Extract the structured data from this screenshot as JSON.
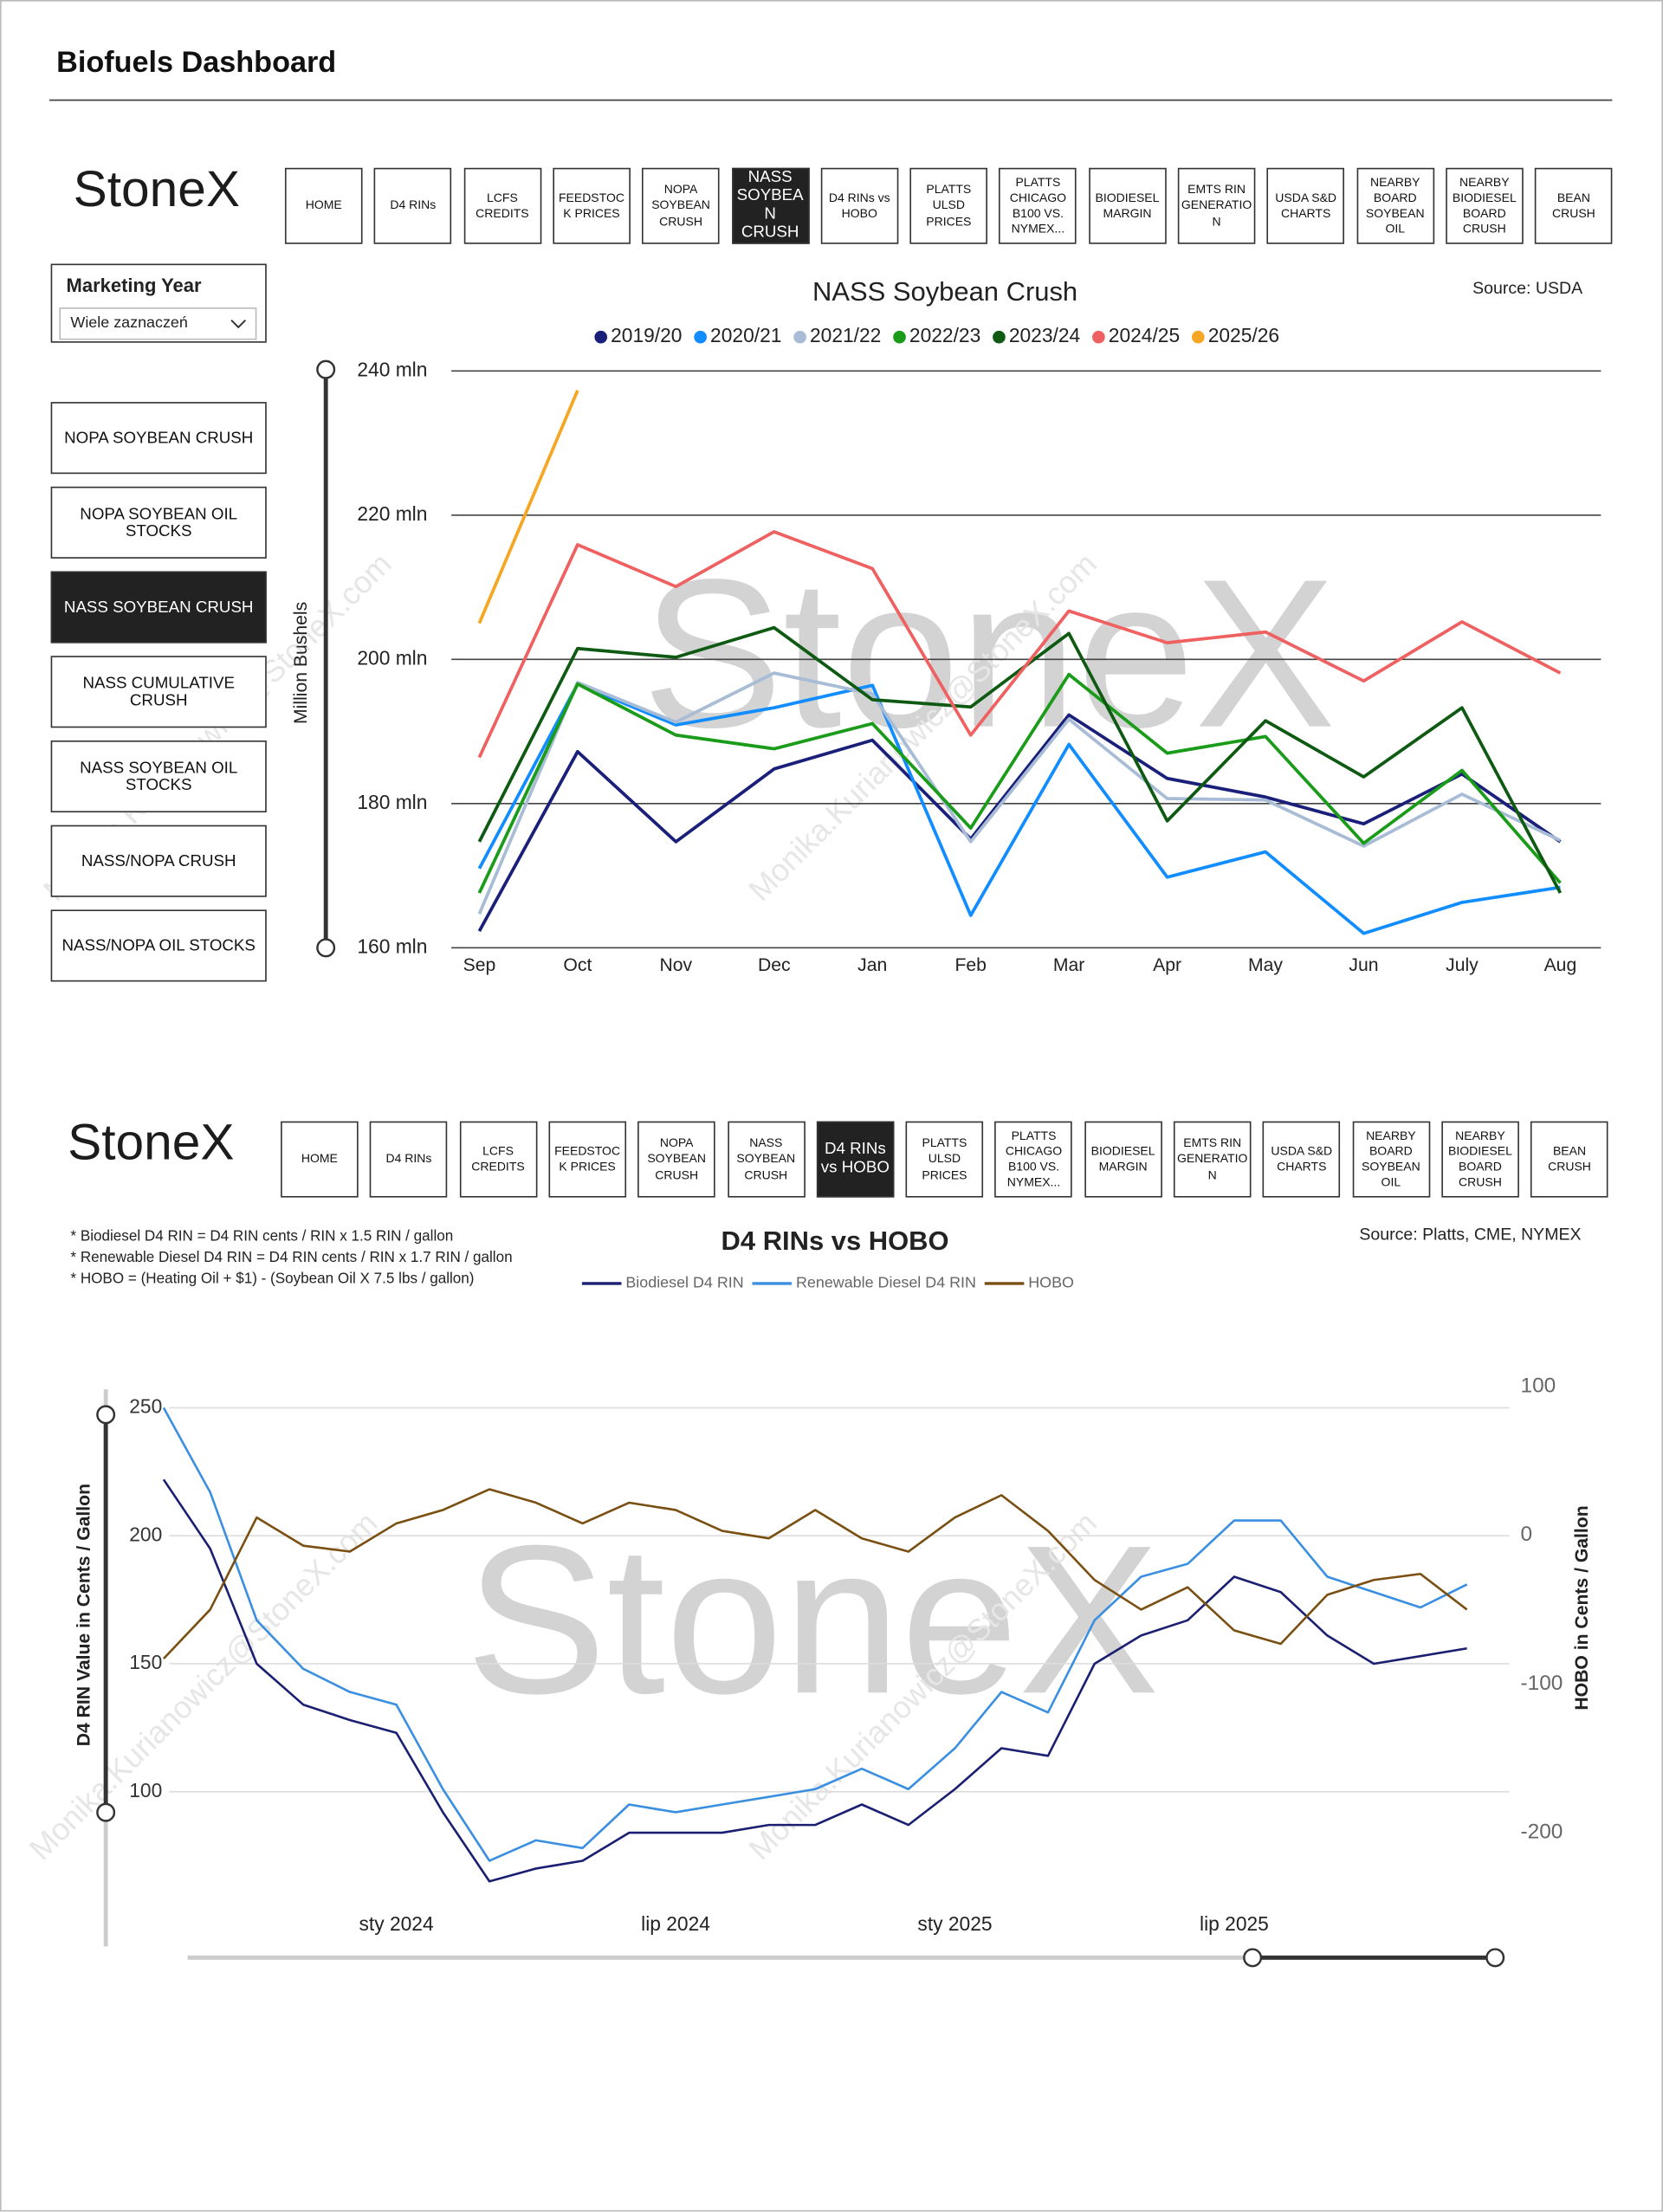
{
  "header": {
    "title": "Biofuels Dashboard"
  },
  "brand": "StoneX",
  "watermark": "Monika.Kurianowicz@StoneX.com",
  "nav": {
    "buttons": [
      "HOME",
      "D4 RINs",
      "LCFS CREDITS",
      "FEEDSTOCK PRICES",
      "NOPA SOYBEAN CRUSH",
      "NASS SOYBEAN CRUSH",
      "D4 RINs vs HOBO",
      "PLATTS ULSD PRICES",
      "PLATTS CHICAGO B100 VS. NYMEX...",
      "BIODIESEL MARGIN",
      "EMTS RIN GENERATION",
      "USDA S&D CHARTS",
      "NEARBY BOARD SOYBEAN OIL",
      "NEARBY BIODIESEL BOARD CRUSH",
      "BEAN CRUSH"
    ],
    "selected": [
      5,
      6
    ]
  },
  "slicer": {
    "title": "Marketing Year",
    "value": "Wiele zaznaczeń"
  },
  "side_menu": {
    "buttons": [
      "NOPA SOYBEAN CRUSH",
      "NOPA SOYBEAN OIL STOCKS",
      "NASS SOYBEAN CRUSH",
      "NASS CUMULATIVE CRUSH",
      "NASS SOYBEAN OIL STOCKS",
      "NASS/NOPA CRUSH",
      "NASS/NOPA OIL STOCKS"
    ],
    "selected": 2
  },
  "chart_data": [
    {
      "type": "line",
      "title": "NASS Soybean Crush",
      "source": "Source: USDA",
      "ylabel": "Million Bushels",
      "legend": "top",
      "grid": true,
      "categories": [
        "Sep",
        "Oct",
        "Nov",
        "Dec",
        "Jan",
        "Feb",
        "Mar",
        "Apr",
        "May",
        "Jun",
        "July",
        "Aug"
      ],
      "ylim": [
        160,
        240
      ],
      "yticks": [
        {
          "value": 160,
          "label": "160 mln"
        },
        {
          "value": 180,
          "label": "180 mln"
        },
        {
          "value": 200,
          "label": "200 mln"
        },
        {
          "value": 220,
          "label": "220 mln"
        },
        {
          "value": 240,
          "label": "240 mln"
        }
      ],
      "series": [
        {
          "name": "2019/20",
          "color": "#1a1f7a",
          "values": [
            162.3,
            187.2,
            174.7,
            184.8,
            188.8,
            175.1,
            192.3,
            183.5,
            180.9,
            177.2,
            184.1,
            174.7
          ]
        },
        {
          "name": "2020/21",
          "color": "#118dff",
          "values": [
            171.0,
            196.6,
            190.9,
            193.3,
            196.4,
            164.5,
            188.2,
            169.8,
            173.3,
            162.0,
            166.3,
            168.4
          ]
        },
        {
          "name": "2021/22",
          "color": "#a9bcd6",
          "values": [
            164.7,
            196.8,
            191.3,
            198.1,
            195.2,
            174.7,
            191.7,
            180.7,
            180.5,
            174.1,
            181.3,
            174.9
          ]
        },
        {
          "name": "2022/23",
          "color": "#1a9c1a",
          "values": [
            167.6,
            196.6,
            189.5,
            187.6,
            191.1,
            176.6,
            197.9,
            187.0,
            189.3,
            174.5,
            184.6,
            169.0
          ]
        },
        {
          "name": "2023/24",
          "color": "#0f5a13",
          "values": [
            174.7,
            201.5,
            200.3,
            204.4,
            194.4,
            193.4,
            203.6,
            177.6,
            191.5,
            183.7,
            193.3,
            167.6
          ]
        },
        {
          "name": "2024/25",
          "color": "#ef6161",
          "values": [
            186.4,
            215.9,
            210.1,
            217.7,
            212.6,
            189.5,
            206.7,
            202.3,
            203.8,
            197.0,
            205.2,
            198.1
          ]
        },
        {
          "name": "2025/26",
          "color": "#f5a623",
          "values": [
            205.0,
            237.3,
            null,
            null,
            null,
            null,
            null,
            null,
            null,
            null,
            null,
            null
          ]
        }
      ]
    },
    {
      "type": "line",
      "title": "D4 RINs vs HOBO",
      "source": "Source: Platts, CME, NYMEX",
      "ylabel": "D4 RIN Value in Cents / Gallon",
      "y2label": "HOBO in Cents / Gallon",
      "legend": "top",
      "grid": true,
      "notes": [
        "* Biodiesel D4 RIN = D4 RIN cents / RIN x 1.5 RIN / gallon",
        "* Renewable Diesel D4 RIN = D4 RIN cents / RIN x 1.7 RIN / gallon",
        "* HOBO = (Heating Oil + $1) - (Soybean Oil X 7.5 lbs / gallon)"
      ],
      "x": [
        "2023-08",
        "2023-09",
        "2023-10",
        "2023-11",
        "2023-12",
        "2024-01",
        "2024-02",
        "2024-03",
        "2024-04",
        "2024-05",
        "2024-06",
        "2024-07",
        "2024-08",
        "2024-09",
        "2024-10",
        "2024-11",
        "2024-12",
        "2025-01",
        "2025-02",
        "2025-03",
        "2025-04",
        "2025-05",
        "2025-06",
        "2025-07",
        "2025-08",
        "2025-09",
        "2025-10",
        "2025-11",
        "2025-12"
      ],
      "xlim": [
        "2023-08",
        "2025-12"
      ],
      "xticks": [
        {
          "value": "2024-01",
          "label": "sty 2024"
        },
        {
          "value": "2024-07",
          "label": "lip 2024"
        },
        {
          "value": "2025-01",
          "label": "sty 2025"
        },
        {
          "value": "2025-07",
          "label": "lip 2025"
        }
      ],
      "ylim": [
        55,
        260
      ],
      "yticks": [
        100,
        150,
        200,
        250
      ],
      "y2lim": [
        -250,
        103
      ],
      "y2ticks": [
        -200,
        -100,
        0,
        100
      ],
      "series": [
        {
          "name": "Biodiesel D4 RIN",
          "color": "#1a1f71",
          "values": [
            222,
            195,
            150,
            134,
            128,
            123,
            92,
            65,
            70,
            73,
            84,
            84,
            84,
            87,
            87,
            95,
            87,
            101,
            117,
            114,
            150,
            161,
            167,
            184,
            178,
            161,
            150,
            153,
            156
          ]
        },
        {
          "name": "Renewable Diesel D4 RIN",
          "color": "#3a8fe0",
          "values": [
            250,
            217,
            167,
            148,
            139,
            134,
            101,
            73,
            81,
            78,
            95,
            92,
            95,
            98,
            101,
            109,
            101,
            117,
            139,
            131,
            167,
            184,
            189,
            206,
            206,
            184,
            178,
            172,
            181
          ]
        },
        {
          "name": "HOBO",
          "color": "#7a4f12",
          "axis": "y2",
          "values": [
            -83,
            -50,
            12,
            -7,
            -11,
            8,
            17,
            31,
            22,
            8,
            22,
            17,
            3,
            -2,
            17,
            -2,
            -11,
            12,
            27,
            3,
            -30,
            -50,
            -35,
            -64,
            -73,
            -40,
            -30,
            -26,
            -50
          ]
        }
      ]
    }
  ]
}
